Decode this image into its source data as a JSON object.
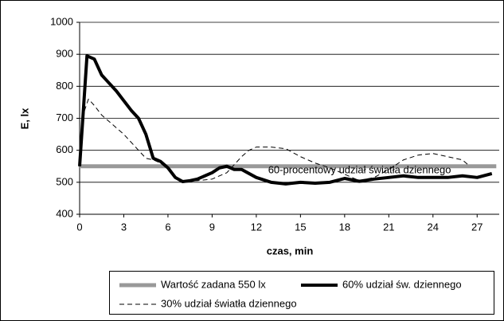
{
  "chart_data": {
    "type": "line",
    "y_label": "E, lx",
    "x_label": "czas, min",
    "annotation": {
      "text": "60-procentowy udział światła dziennego",
      "x": 12.8,
      "y": 537
    },
    "xlim": [
      0,
      28.5
    ],
    "xticks": [
      0,
      3,
      6,
      9,
      12,
      15,
      18,
      21,
      24,
      27
    ],
    "ylim": [
      400,
      1000
    ],
    "yticks": [
      400,
      500,
      600,
      700,
      800,
      900,
      1000
    ],
    "grid": true,
    "series": [
      {
        "name": "Wartość zadana 550 lx",
        "color": "#999999",
        "width": 5,
        "dash": null,
        "x": [
          0,
          28.3
        ],
        "values": [
          550,
          550
        ]
      },
      {
        "name": "60% udział św. dziennego",
        "color": "#000000",
        "width": 4,
        "dash": null,
        "x": [
          0,
          0.5,
          1,
          1.5,
          2,
          2.5,
          3,
          3.5,
          4,
          4.5,
          5,
          5.5,
          6,
          6.5,
          7,
          7.5,
          8,
          9,
          9.5,
          10,
          10.5,
          11,
          12,
          13,
          14,
          15,
          16,
          17,
          18,
          19,
          20,
          21,
          22,
          23,
          24,
          25,
          26,
          27,
          28
        ],
        "values": [
          550,
          895,
          885,
          835,
          810,
          785,
          755,
          725,
          700,
          650,
          575,
          565,
          545,
          515,
          502,
          505,
          510,
          530,
          545,
          550,
          540,
          540,
          515,
          500,
          495,
          500,
          497,
          500,
          512,
          503,
          510,
          515,
          520,
          515,
          515,
          515,
          520,
          515,
          527
        ]
      },
      {
        "name": "30% udział światła dziennego",
        "color": "#000000",
        "width": 1,
        "dash": "6,4",
        "x": [
          0,
          0.3,
          0.6,
          1,
          1.5,
          2,
          3,
          4,
          4.5,
          5,
          5.5,
          6,
          6.5,
          7,
          8,
          9,
          10,
          11,
          11.5,
          12,
          13,
          14,
          15,
          16,
          17,
          18,
          19,
          20,
          21,
          22,
          23,
          24,
          25,
          26,
          26.5
        ],
        "values": [
          550,
          720,
          760,
          740,
          710,
          690,
          650,
          600,
          575,
          570,
          560,
          540,
          515,
          505,
          505,
          510,
          530,
          580,
          600,
          610,
          610,
          605,
          580,
          560,
          545,
          525,
          505,
          515,
          540,
          570,
          585,
          590,
          580,
          570,
          550
        ]
      }
    ]
  }
}
